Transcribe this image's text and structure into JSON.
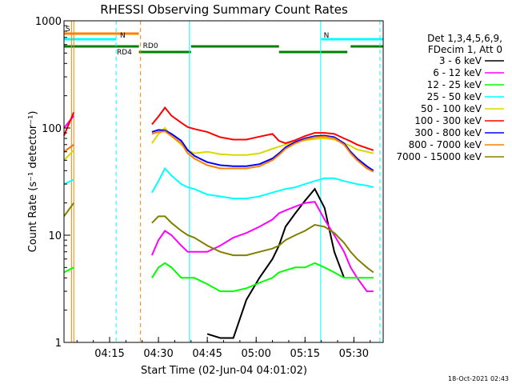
{
  "chart_data": {
    "type": "line",
    "title": "RHESSI Observing Summary Count Rates",
    "xlabel": "Start Time (02-Jun-04 04:01:02)",
    "ylabel": "Count Rate (s⁻¹ detector⁻¹)",
    "y_scale": "log",
    "ylim": [
      1,
      1000
    ],
    "xlim_minutes": [
      0,
      98
    ],
    "y_ticks": [
      {
        "value": 1,
        "label": "1"
      },
      {
        "value": 10,
        "label": "10"
      },
      {
        "value": 100,
        "label": "100"
      },
      {
        "value": 1000,
        "label": "1000"
      }
    ],
    "x_ticks": [
      {
        "minute": 14,
        "label": "04:15"
      },
      {
        "minute": 29,
        "label": "04:30"
      },
      {
        "minute": 44,
        "label": "04:45"
      },
      {
        "minute": 59,
        "label": "05:00"
      },
      {
        "minute": 74,
        "label": "05:15"
      },
      {
        "minute": 89,
        "label": "05:30"
      }
    ],
    "legend_header": [
      "Det 1,3,4,5,6,9,",
      "FDecim 1, Att 0"
    ],
    "legend_position": "right",
    "timestamp": "18-Oct-2021 02:43",
    "x_data_minutes": [
      0,
      3,
      21,
      24,
      27,
      29,
      31,
      33,
      36,
      38,
      40,
      44,
      48,
      52,
      56,
      60,
      64,
      66,
      68,
      71,
      74,
      77,
      80,
      83,
      86,
      88,
      90,
      93,
      95
    ],
    "series": [
      {
        "name": "3 - 6 keV",
        "color": "#000000",
        "values": [
          null,
          null,
          null,
          null,
          null,
          null,
          null,
          null,
          null,
          null,
          null,
          1.2,
          1.1,
          1.1,
          2.5,
          4,
          6,
          8,
          12,
          16,
          21,
          27,
          18,
          7,
          4,
          null,
          null,
          null,
          null
        ]
      },
      {
        "name": "6 - 12 keV",
        "color": "#ff00ff",
        "values": [
          100,
          130,
          null,
          null,
          6.5,
          9,
          11,
          10,
          8,
          7,
          7,
          7,
          8,
          9.5,
          10.5,
          12,
          14,
          16,
          17,
          18.5,
          20,
          20.5,
          14,
          10,
          7,
          5,
          4,
          3,
          3
        ]
      },
      {
        "name": "12 - 25 keV",
        "color": "#00ff00",
        "values": [
          4.5,
          5,
          null,
          null,
          4,
          5,
          5.5,
          5,
          4,
          4,
          4,
          3.5,
          3,
          3,
          3.2,
          3.6,
          4,
          4.5,
          4.7,
          5,
          5,
          5.5,
          5,
          4.5,
          4,
          4,
          4,
          4,
          4
        ]
      },
      {
        "name": "25 - 50 keV",
        "color": "#00ffff",
        "values": [
          30,
          33,
          null,
          null,
          25,
          32,
          42,
          36,
          30,
          28,
          27,
          24,
          23,
          22,
          22,
          23,
          25,
          26,
          27,
          28,
          30,
          32,
          34,
          34,
          32,
          31,
          30,
          29,
          28
        ]
      },
      {
        "name": "50 - 100 keV",
        "color": "#d8d800",
        "values": [
          50,
          62,
          null,
          null,
          72,
          88,
          100,
          84,
          70,
          62,
          58,
          60,
          57,
          56,
          56,
          58,
          64,
          67,
          70,
          74,
          77,
          79,
          80,
          78,
          72,
          68,
          63,
          60,
          58
        ]
      },
      {
        "name": "100 - 300 keV",
        "color": "#ff0000",
        "values": [
          85,
          140,
          null,
          null,
          108,
          128,
          155,
          130,
          112,
          102,
          98,
          92,
          82,
          78,
          78,
          83,
          88,
          76,
          72,
          77,
          84,
          90,
          90,
          88,
          80,
          75,
          70,
          65,
          62
        ]
      },
      {
        "name": "300 - 800 keV",
        "color": "#0000ff",
        "values": [
          60,
          70,
          null,
          null,
          92,
          96,
          95,
          88,
          76,
          62,
          55,
          48,
          45,
          44,
          44,
          46,
          52,
          58,
          66,
          74,
          80,
          84,
          85,
          82,
          72,
          60,
          52,
          44,
          40
        ]
      },
      {
        "name": "800 - 7000 keV",
        "color": "#ff8000",
        "values": [
          60,
          70,
          null,
          null,
          88,
          92,
          93,
          84,
          72,
          58,
          52,
          45,
          42,
          42,
          42,
          44,
          50,
          56,
          64,
          72,
          78,
          82,
          83,
          80,
          70,
          58,
          50,
          42,
          39
        ]
      },
      {
        "name": "7000 - 15000 keV",
        "color": "#808000",
        "values": [
          15,
          20,
          null,
          null,
          13,
          15,
          15,
          13,
          11,
          10,
          9.5,
          8,
          7,
          6.5,
          6.5,
          7,
          7.5,
          8,
          9,
          10,
          11,
          12.5,
          12,
          10.5,
          8.5,
          7,
          6,
          5,
          4.5
        ]
      }
    ],
    "flag_segments": [
      {
        "label": "S",
        "color": "#ff8000",
        "start": 0,
        "end": 23
      },
      {
        "label": "N",
        "color": "#00ffff",
        "start": 0,
        "end": 16
      },
      {
        "label": "N",
        "color": "#00ffff",
        "start": 79,
        "end": 98
      },
      {
        "label": "RD4",
        "color": "#008000",
        "start": 0,
        "end": 23
      },
      {
        "label": "RD0",
        "color": "#008000",
        "start": 23,
        "end": 39
      },
      {
        "label": "",
        "color": "#008000",
        "start": 39,
        "end": 66
      },
      {
        "label": "",
        "color": "#008000",
        "start": 66,
        "end": 87
      },
      {
        "label": "",
        "color": "#008000",
        "start": 88,
        "end": 98
      }
    ],
    "vertical_markers": [
      {
        "minute": 2.3,
        "color": "#ff8000",
        "style": "solid"
      },
      {
        "minute": 3.0,
        "color": "#ff8000",
        "style": "solid"
      },
      {
        "minute": 16.0,
        "color": "#00ffff",
        "style": "dashed"
      },
      {
        "minute": 23.5,
        "color": "#ff8000",
        "style": "dashed"
      },
      {
        "minute": 38.5,
        "color": "#00ffff",
        "style": "solid"
      },
      {
        "minute": 78.8,
        "color": "#00ffff",
        "style": "solid"
      },
      {
        "minute": 97.0,
        "color": "#00ffff",
        "style": "dashed"
      }
    ]
  }
}
